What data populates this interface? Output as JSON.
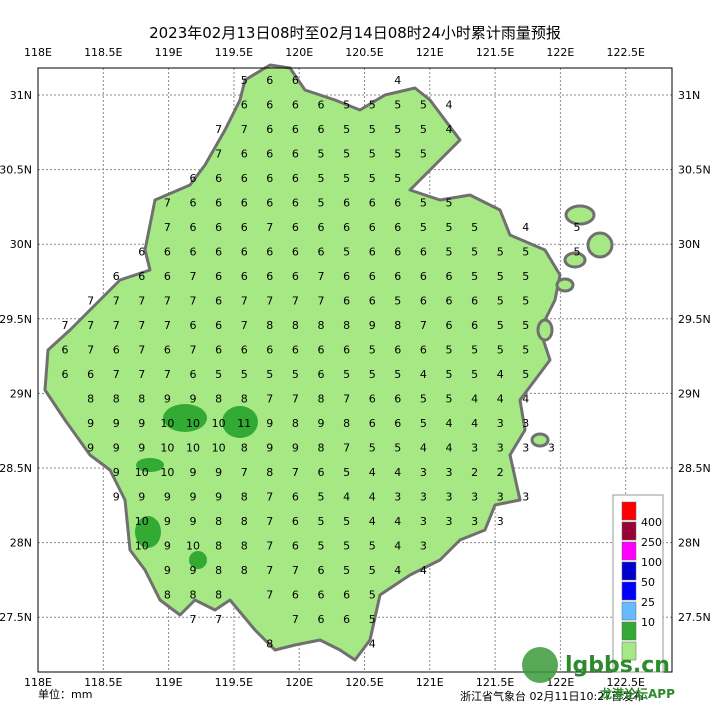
{
  "map": {
    "title": "2023年02月13日08时至02月14日08时24小时累计雨量预报",
    "lon_labels": [
      "118E",
      "118.5E",
      "119E",
      "119.5E",
      "120E",
      "120.5E",
      "121E",
      "121.5E",
      "122E",
      "122.5E"
    ],
    "lat_labels": [
      "31N",
      "30.5N",
      "30N",
      "29.5N",
      "29N",
      "28.5N",
      "28N",
      "27.5N"
    ],
    "unit": "单位：mm",
    "source": "浙江省气象台 02月11日10:27首发布",
    "watermark": {
      "site": "lgbbs.cn",
      "app": "龙港论坛APP"
    },
    "legend": {
      "colors": [
        "#ff0000",
        "#990033",
        "#ff00ff",
        "#0000cc",
        "#0000ff",
        "#66bbff",
        "#33aa33",
        "#a6e884"
      ],
      "labels": [
        "400",
        "250",
        "100",
        "50",
        "25",
        "10"
      ]
    },
    "rainfall_grid": {
      "rows": [
        [
          null,
          null,
          null,
          null,
          null,
          null,
          null,
          5,
          6,
          6,
          null,
          null,
          null,
          4
        ],
        [
          null,
          null,
          null,
          null,
          null,
          null,
          null,
          6,
          6,
          6,
          6,
          5,
          5,
          5,
          5,
          4
        ],
        [
          null,
          null,
          null,
          null,
          null,
          null,
          7,
          7,
          6,
          6,
          6,
          5,
          5,
          5,
          5,
          4
        ],
        [
          null,
          null,
          null,
          null,
          null,
          null,
          7,
          6,
          6,
          6,
          5,
          5,
          5,
          5,
          5
        ],
        [
          null,
          null,
          null,
          null,
          null,
          6,
          6,
          6,
          6,
          6,
          5,
          5,
          5,
          5
        ],
        [
          null,
          null,
          null,
          null,
          7,
          6,
          6,
          6,
          6,
          6,
          5,
          6,
          6,
          6,
          5,
          5
        ],
        [
          null,
          null,
          null,
          null,
          7,
          6,
          6,
          6,
          7,
          6,
          6,
          6,
          6,
          6,
          5,
          5,
          5,
          null,
          4,
          null,
          5
        ],
        [
          null,
          null,
          null,
          6,
          6,
          6,
          6,
          6,
          6,
          6,
          6,
          5,
          6,
          6,
          6,
          5,
          5,
          5,
          5,
          null,
          5
        ],
        [
          null,
          null,
          6,
          6,
          6,
          7,
          6,
          6,
          6,
          6,
          7,
          6,
          6,
          6,
          6,
          6,
          5,
          5,
          5
        ],
        [
          null,
          7,
          7,
          7,
          7,
          7,
          6,
          7,
          7,
          7,
          7,
          6,
          6,
          5,
          6,
          6,
          6,
          5,
          5
        ],
        [
          7,
          7,
          7,
          7,
          7,
          6,
          6,
          7,
          8,
          8,
          8,
          8,
          9,
          8,
          7,
          6,
          6,
          5,
          5
        ],
        [
          6,
          7,
          6,
          7,
          6,
          7,
          6,
          6,
          6,
          6,
          6,
          6,
          5,
          6,
          6,
          5,
          5,
          5,
          5
        ],
        [
          6,
          6,
          7,
          7,
          7,
          6,
          5,
          5,
          5,
          5,
          6,
          5,
          5,
          5,
          4,
          5,
          5,
          4,
          5
        ],
        [
          null,
          8,
          8,
          8,
          9,
          9,
          8,
          8,
          7,
          7,
          8,
          7,
          6,
          6,
          5,
          5,
          4,
          4,
          4
        ],
        [
          null,
          9,
          9,
          9,
          10,
          10,
          10,
          11,
          9,
          8,
          9,
          8,
          6,
          6,
          5,
          4,
          4,
          3,
          3
        ],
        [
          null,
          9,
          9,
          9,
          10,
          10,
          10,
          8,
          9,
          9,
          8,
          7,
          5,
          5,
          4,
          4,
          3,
          3,
          3,
          3
        ],
        [
          null,
          null,
          9,
          10,
          10,
          9,
          9,
          7,
          8,
          7,
          6,
          5,
          4,
          4,
          3,
          3,
          2,
          2
        ],
        [
          null,
          null,
          9,
          9,
          9,
          9,
          9,
          8,
          7,
          6,
          5,
          4,
          4,
          3,
          3,
          3,
          3,
          3,
          3
        ],
        [
          null,
          null,
          null,
          10,
          9,
          9,
          8,
          8,
          7,
          6,
          5,
          5,
          4,
          4,
          3,
          3,
          3,
          3
        ],
        [
          null,
          null,
          null,
          10,
          9,
          10,
          8,
          8,
          7,
          6,
          5,
          5,
          5,
          4,
          3
        ],
        [
          null,
          null,
          null,
          null,
          9,
          9,
          8,
          8,
          7,
          7,
          6,
          5,
          5,
          4,
          4
        ],
        [
          null,
          null,
          null,
          null,
          8,
          8,
          8,
          null,
          7,
          6,
          6,
          6,
          5
        ],
        [
          null,
          null,
          null,
          null,
          null,
          7,
          7,
          null,
          null,
          7,
          6,
          6,
          5
        ],
        [
          null,
          null,
          null,
          null,
          null,
          null,
          null,
          null,
          8,
          null,
          null,
          null,
          4
        ]
      ]
    }
  }
}
